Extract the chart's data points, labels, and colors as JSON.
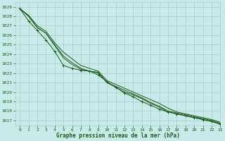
{
  "title": "Graphe pression niveau de la mer (hPa)",
  "background_color": "#c8eae8",
  "grid_color": "#aacccc",
  "line_color": "#1a5c1a",
  "xlim": [
    -0.5,
    23
  ],
  "ylim": [
    1016.5,
    1029.5
  ],
  "yticks": [
    1017,
    1018,
    1019,
    1020,
    1021,
    1022,
    1023,
    1024,
    1025,
    1026,
    1027,
    1028,
    1029
  ],
  "xticks": [
    0,
    1,
    2,
    3,
    4,
    5,
    6,
    7,
    8,
    9,
    10,
    11,
    12,
    13,
    14,
    15,
    16,
    17,
    18,
    19,
    20,
    21,
    22,
    23
  ],
  "line1": [
    1028.8,
    1028.1,
    1027.0,
    1026.4,
    1025.2,
    1024.2,
    1023.5,
    1022.8,
    1022.5,
    1022.2,
    1021.2,
    1020.8,
    1020.4,
    1020.0,
    1019.6,
    1019.2,
    1018.8,
    1018.3,
    1017.9,
    1017.7,
    1017.5,
    1017.3,
    1017.1,
    1016.8
  ],
  "line2": [
    1028.8,
    1028.0,
    1026.8,
    1026.2,
    1025.0,
    1023.8,
    1023.1,
    1022.5,
    1022.2,
    1022.1,
    1021.0,
    1020.6,
    1020.2,
    1019.8,
    1019.4,
    1018.9,
    1018.5,
    1018.0,
    1017.8,
    1017.6,
    1017.4,
    1017.2,
    1017.0,
    1016.7
  ],
  "line3_with_markers": [
    1028.8,
    1027.5,
    1026.5,
    1025.5,
    1024.3,
    1022.8,
    1022.5,
    1022.3,
    1022.2,
    1021.8,
    1021.1,
    1020.5,
    1019.9,
    1019.5,
    1019.0,
    1018.6,
    1018.2,
    1017.9,
    1017.7,
    1017.5,
    1017.3,
    1017.1,
    1016.9,
    1016.6
  ],
  "line4": [
    1028.8,
    1028.0,
    1026.8,
    1026.2,
    1024.9,
    1023.6,
    1022.9,
    1022.4,
    1022.2,
    1022.0,
    1021.0,
    1020.5,
    1020.0,
    1019.7,
    1019.3,
    1018.8,
    1018.4,
    1017.9,
    1017.7,
    1017.5,
    1017.3,
    1017.1,
    1016.9,
    1016.6
  ]
}
